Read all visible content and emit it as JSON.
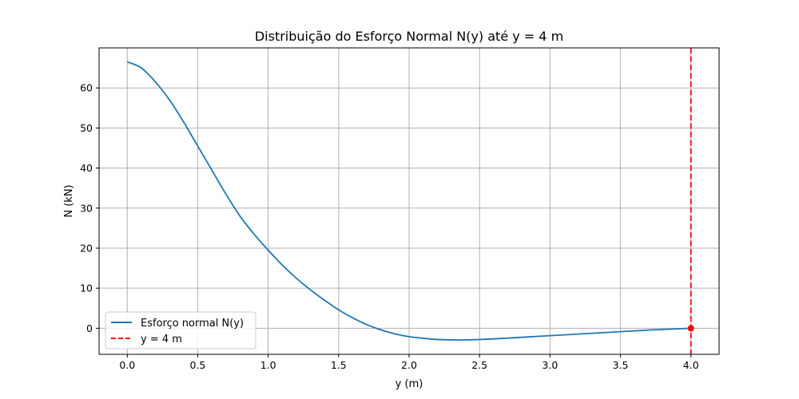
{
  "chart_data": {
    "type": "line",
    "title": "Distribuição do Esforço Normal N(y) até y = 4 m",
    "xlabel": "y (m)",
    "ylabel": "N (kN)",
    "xlim": [
      -0.2,
      4.2
    ],
    "ylim": [
      -6.5,
      70
    ],
    "xticks": [
      0.0,
      0.5,
      1.0,
      1.5,
      2.0,
      2.5,
      3.0,
      3.5,
      4.0
    ],
    "xtick_labels": [
      "0.0",
      "0.5",
      "1.0",
      "1.5",
      "2.0",
      "2.5",
      "3.0",
      "3.5",
      "4.0"
    ],
    "yticks": [
      0,
      10,
      20,
      30,
      40,
      50,
      60
    ],
    "ytick_labels": [
      "0",
      "10",
      "20",
      "30",
      "40",
      "50",
      "60"
    ],
    "grid": true,
    "legend_position": "lower-left",
    "series": [
      {
        "name": "Esforço normal N(y)",
        "color": "#1f77b4",
        "style": "solid",
        "x": [
          0.0,
          0.1,
          0.2,
          0.3,
          0.4,
          0.5,
          0.6,
          0.7,
          0.8,
          0.9,
          1.0,
          1.1,
          1.2,
          1.3,
          1.4,
          1.5,
          1.6,
          1.7,
          1.8,
          1.9,
          2.0,
          2.1,
          2.2,
          2.3,
          2.4,
          2.5,
          2.6,
          2.7,
          2.8,
          2.9,
          3.0,
          3.1,
          3.2,
          3.3,
          3.4,
          3.5,
          3.6,
          3.7,
          3.8,
          3.9,
          4.0
        ],
        "y": [
          66.5,
          65.0,
          61.5,
          57.0,
          51.5,
          45.5,
          39.5,
          33.5,
          28.0,
          23.5,
          19.5,
          15.8,
          12.5,
          9.6,
          7.0,
          4.6,
          2.6,
          0.9,
          -0.4,
          -1.4,
          -2.1,
          -2.5,
          -2.8,
          -2.9,
          -2.9,
          -2.8,
          -2.65,
          -2.45,
          -2.25,
          -2.05,
          -1.85,
          -1.65,
          -1.45,
          -1.25,
          -1.05,
          -0.85,
          -0.65,
          -0.45,
          -0.3,
          -0.15,
          0.0
        ]
      },
      {
        "name": "y = 4 m",
        "color": "#ff0000",
        "style": "dashed",
        "x_const": 4.0
      }
    ],
    "marker": {
      "x": 4.0,
      "y": 0.0,
      "color": "#ff0000"
    }
  }
}
